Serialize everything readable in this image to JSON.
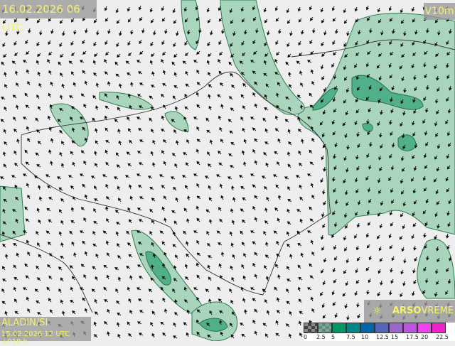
{
  "header": {
    "valid_time": "16.02.2026 06 UTC",
    "parameter": "V10m"
  },
  "footer": {
    "model": "ALADIN/SI",
    "run": "15.02.2026 12 UTC +018 h"
  },
  "brand": {
    "icon": "sun-icon",
    "name_bold": "ARSO",
    "name": "VREME",
    "color": "#f4f46a"
  },
  "map": {
    "background": "#eeeeee",
    "fill_color": "#9fcfb4",
    "fill_strong": "#4fb08a",
    "contour_color": "#2e7d4f",
    "border_color": "#333333",
    "arrow_color": "#111111"
  },
  "legend": {
    "colors": [
      "#555555",
      "#5f8a78",
      "#009966",
      "#008888",
      "#0066aa",
      "#5566bb",
      "#9966cc",
      "#bb55dd",
      "#ee44ee",
      "#ee22cc"
    ],
    "labels": [
      "0",
      "2.5",
      "5",
      "7.5",
      "10",
      "12.5",
      "15",
      "17.5",
      "20",
      "22.5"
    ]
  }
}
